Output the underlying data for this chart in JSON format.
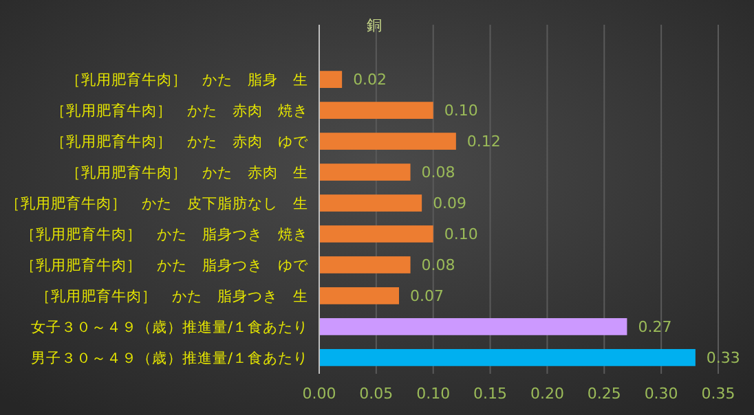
{
  "chart_data": {
    "type": "bar",
    "orientation": "horizontal",
    "title": "銅",
    "categories": [
      "［乳用肥育牛肉］　かた　脂身　生",
      "［乳用肥育牛肉］　かた　赤肉　焼き",
      "［乳用肥育牛肉］　かた　赤肉　ゆで",
      "［乳用肥育牛肉］　かた　赤肉　生",
      "［乳用肥育牛肉］　かた　皮下脂肪なし　生",
      "［乳用肥育牛肉］　かた　脂身つき　焼き",
      "［乳用肥育牛肉］　かた　脂身つき　ゆで",
      "［乳用肥育牛肉］　かた　脂身つき　生",
      "女子３０～４９（歳）推進量/１食あたり",
      "男子３０～４９（歳）推進量/１食あたり"
    ],
    "values": [
      0.02,
      0.1,
      0.12,
      0.08,
      0.09,
      0.1,
      0.08,
      0.07,
      0.27,
      0.33
    ],
    "colors": [
      "#ed7d31",
      "#ed7d31",
      "#ed7d31",
      "#ed7d31",
      "#ed7d31",
      "#ed7d31",
      "#ed7d31",
      "#ed7d31",
      "#cc99ff",
      "#00b0f0"
    ],
    "xlim": [
      0,
      0.35
    ],
    "xticks": [
      {
        "value": 0,
        "label": "0.00"
      },
      {
        "value": 0.05,
        "label": "0.05"
      },
      {
        "value": 0.1,
        "label": "0.10"
      },
      {
        "value": 0.15,
        "label": "0.15"
      },
      {
        "value": 0.2,
        "label": "0.20"
      },
      {
        "value": 0.25,
        "label": "0.25"
      },
      {
        "value": 0.3,
        "label": "0.30"
      },
      {
        "value": 0.35,
        "label": "0.35"
      }
    ],
    "value_labels": [
      "0.02",
      "0.10",
      "0.12",
      "0.08",
      "0.09",
      "0.10",
      "0.08",
      "0.07",
      "0.27",
      "0.33"
    ],
    "grid": "x"
  }
}
